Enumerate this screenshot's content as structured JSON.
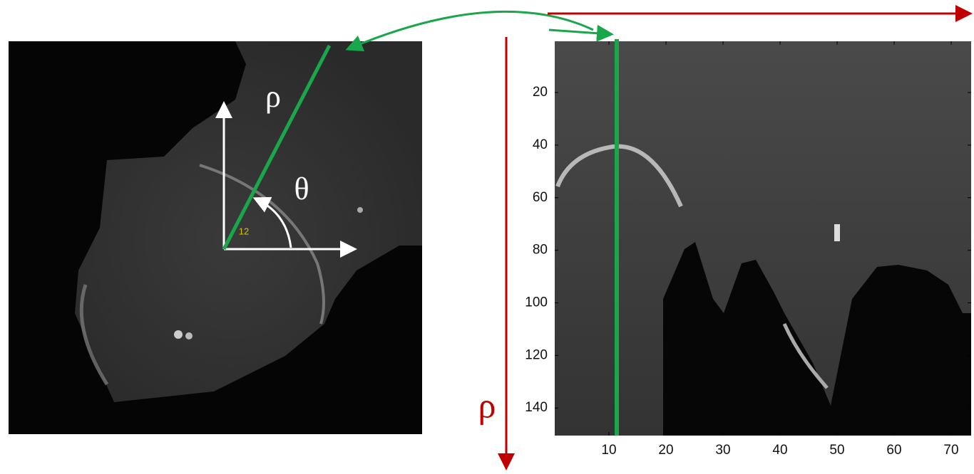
{
  "chart_data": {
    "type": "heatmap",
    "xlim": [
      0.5,
      73.5
    ],
    "ylim": [
      0.5,
      150.5
    ],
    "xticks": [
      10,
      20,
      30,
      40,
      50,
      60,
      70
    ],
    "yticks": [
      20,
      40,
      60,
      80,
      100,
      120,
      140
    ],
    "y_inverted": true,
    "y_axis_label": "ρ",
    "annotations": {
      "rho": "ρ",
      "theta": "θ",
      "index": "12"
    }
  }
}
